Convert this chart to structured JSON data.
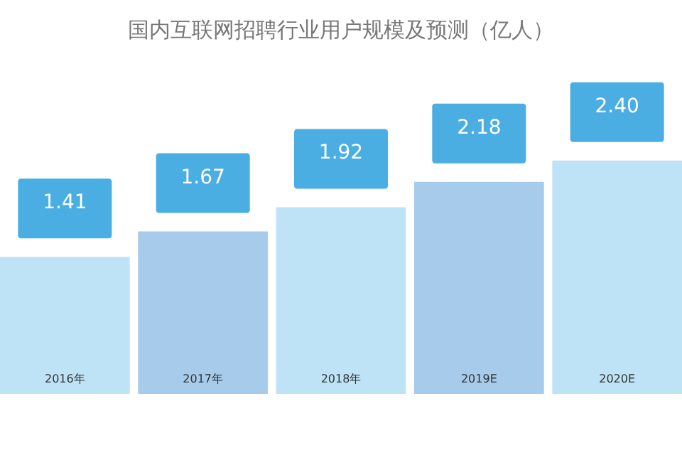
{
  "chart_data": {
    "type": "bar",
    "title": "国内互联网招聘行业用户规模及预测（亿人）",
    "categories": [
      "2016年",
      "2017年",
      "2018年",
      "2019E",
      "2020E"
    ],
    "values": [
      1.41,
      1.67,
      1.92,
      2.18,
      2.4
    ],
    "colors": [
      "#bfe3f6",
      "#a7cbea",
      "#bfe3f6",
      "#a7cbea",
      "#bfe3f6"
    ],
    "value_labels": [
      "1.41",
      "1.67",
      "1.92",
      "2.18",
      "2.40"
    ]
  }
}
